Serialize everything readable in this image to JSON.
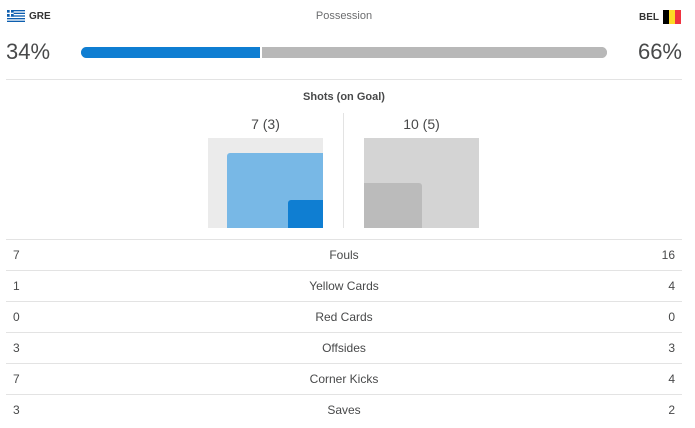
{
  "teams": {
    "home": {
      "abbr": "GRE",
      "flag": "greece-flag-icon",
      "possession": "34%",
      "possession_value": 34,
      "shots_label": "7 (3)",
      "shots": 7,
      "on_goal": 3
    },
    "away": {
      "abbr": "BEL",
      "flag": "belgium-flag-icon",
      "possession": "66%",
      "possession_value": 66,
      "shots_label": "10 (5)",
      "shots": 10,
      "on_goal": 5
    }
  },
  "possession": {
    "title": "Possession"
  },
  "shots": {
    "title": "Shots (on Goal)"
  },
  "colors": {
    "home_primary": "#0f7ed2",
    "home_light": "#78b8e6",
    "home_bg": "#ebebeb",
    "away_primary": "#b8b8b8",
    "away_light": "#bbbbbb",
    "away_bg": "#d4d4d4",
    "greece_blue": "#0d5eaf",
    "belgium_black": "#000000",
    "belgium_yellow": "#fdda24",
    "belgium_red": "#ef3340"
  },
  "stats": [
    {
      "label": "Fouls",
      "home": "7",
      "away": "16"
    },
    {
      "label": "Yellow Cards",
      "home": "1",
      "away": "4"
    },
    {
      "label": "Red Cards",
      "home": "0",
      "away": "0"
    },
    {
      "label": "Offsides",
      "home": "3",
      "away": "3"
    },
    {
      "label": "Corner Kicks",
      "home": "7",
      "away": "4"
    },
    {
      "label": "Saves",
      "home": "3",
      "away": "2"
    }
  ]
}
